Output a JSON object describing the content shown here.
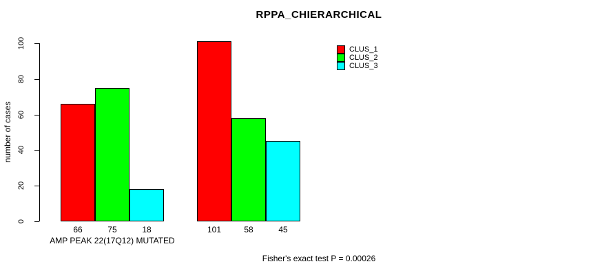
{
  "title": "RPPA_CHIERARCHICAL",
  "footnote": "Fisher's exact test P = 0.00026",
  "chart_data": {
    "type": "bar",
    "title": "RPPA_CHIERARCHICAL",
    "xlabel": "",
    "ylabel": "number of cases",
    "ylim": [
      0,
      100
    ],
    "yticks": [
      0,
      20,
      40,
      60,
      80,
      100
    ],
    "categories": [
      "AMP PEAK 22(17Q12) MUTATED",
      ""
    ],
    "series": [
      {
        "name": "CLUS_1",
        "color": "#FF0000",
        "values": [
          66,
          101
        ]
      },
      {
        "name": "CLUS_2",
        "color": "#00FF00",
        "values": [
          75,
          58
        ]
      },
      {
        "name": "CLUS_3",
        "color": "#00FFFF",
        "values": [
          18,
          45
        ]
      }
    ],
    "bar_value_labels": [
      [
        66,
        75,
        18
      ],
      [
        101,
        58,
        45
      ]
    ],
    "legend": {
      "position": "top-right",
      "entries": [
        {
          "label": "CLUS_1",
          "color": "#FF0000"
        },
        {
          "label": "CLUS_2",
          "color": "#00FF00"
        },
        {
          "label": "CLUS_3",
          "color": "#00FFFF"
        }
      ]
    },
    "grid": false,
    "background_color": "#FFFFFF",
    "axis_color": "#000000",
    "footnote": "Fisher's exact test P = 0.00026"
  }
}
